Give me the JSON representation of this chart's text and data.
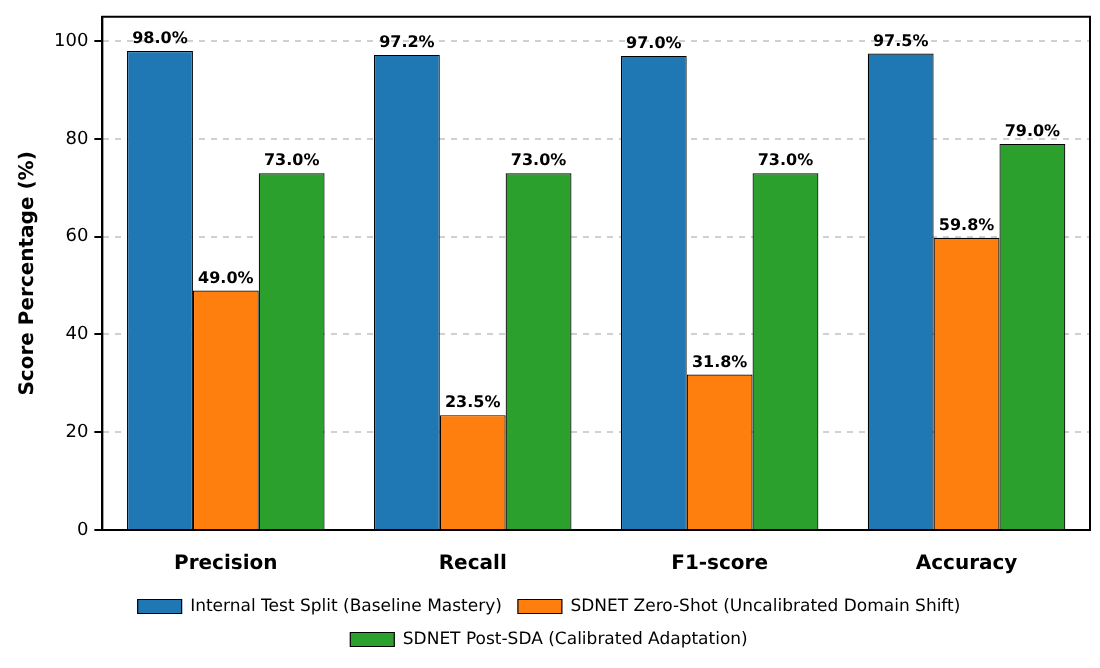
{
  "chart_data": {
    "type": "bar",
    "ylabel": "Score Percentage (%)",
    "categories": [
      "Precision",
      "Recall",
      "F1-score",
      "Accuracy"
    ],
    "series": [
      {
        "name": "Internal Test Split (Baseline Mastery)",
        "color": "#1f77b4",
        "values": [
          98.0,
          97.2,
          97.0,
          97.5
        ],
        "value_labels": [
          "98.0%",
          "97.2%",
          "97.0%",
          "97.5%"
        ]
      },
      {
        "name": "SDNET Zero-Shot (Uncalibrated Domain Shift)",
        "color": "#ff7f0e",
        "values": [
          49.0,
          23.5,
          31.8,
          59.8
        ],
        "value_labels": [
          "49.0%",
          "23.5%",
          "31.8%",
          "59.8%"
        ]
      },
      {
        "name": "SDNET Post-SDA (Calibrated Adaptation)",
        "color": "#2ca02c",
        "values": [
          73.0,
          73.0,
          73.0,
          79.0
        ],
        "value_labels": [
          "73.0%",
          "73.0%",
          "73.0%",
          "79.0%"
        ]
      }
    ],
    "ylim": [
      0,
      105
    ],
    "yticks": [
      0,
      20,
      40,
      60,
      80,
      100
    ],
    "grid": "y",
    "legend": "bottom"
  }
}
